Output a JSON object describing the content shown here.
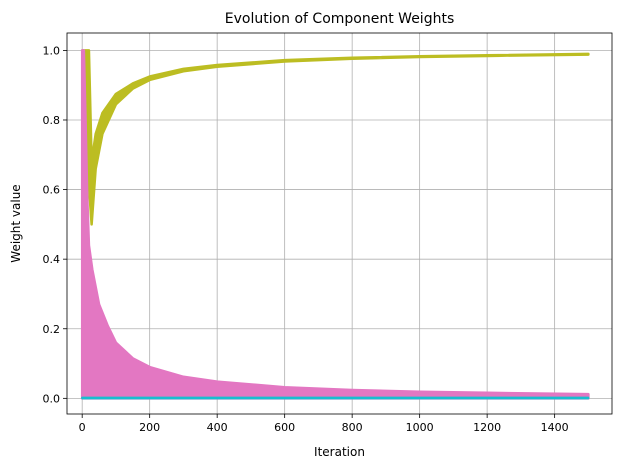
{
  "chart_data": {
    "type": "line",
    "title": "Evolution of Component Weights",
    "xlabel": "Iteration",
    "ylabel": "Weight value",
    "xlim": [
      -45,
      1570
    ],
    "ylim": [
      -0.045,
      1.05
    ],
    "xticks": [
      0,
      200,
      400,
      600,
      800,
      1000,
      1200,
      1400
    ],
    "yticks": [
      0.0,
      0.2,
      0.4,
      0.6,
      0.8,
      1.0
    ],
    "xtick_labels": [
      "0",
      "200",
      "400",
      "600",
      "800",
      "1000",
      "1200",
      "1400"
    ],
    "ytick_labels": [
      "0.0",
      "0.2",
      "0.4",
      "0.6",
      "0.8",
      "1.0"
    ],
    "grid": true,
    "x_range": [
      0,
      1500
    ],
    "series": [
      {
        "color": "#bcbd22",
        "style": "alternating",
        "description_values": {
          "upper_envelope": [
            [
              0,
              1.0
            ],
            [
              10,
              1.0
            ],
            [
              20,
              1.0
            ],
            [
              28,
              0.68
            ],
            [
              40,
              0.76
            ],
            [
              60,
              0.82
            ],
            [
              100,
              0.875
            ],
            [
              150,
              0.905
            ],
            [
              200,
              0.925
            ],
            [
              300,
              0.947
            ],
            [
              400,
              0.958
            ],
            [
              600,
              0.972
            ],
            [
              800,
              0.979
            ],
            [
              1000,
              0.983
            ],
            [
              1200,
              0.986
            ],
            [
              1500,
              0.99
            ]
          ],
          "lower_envelope": [
            [
              0,
              1.0
            ],
            [
              10,
              0.75
            ],
            [
              20,
              0.61
            ],
            [
              28,
              0.5
            ],
            [
              40,
              0.66
            ],
            [
              60,
              0.76
            ],
            [
              100,
              0.845
            ],
            [
              150,
              0.89
            ],
            [
              200,
              0.915
            ],
            [
              300,
              0.94
            ],
            [
              400,
              0.953
            ],
            [
              600,
              0.968
            ],
            [
              800,
              0.976
            ],
            [
              1000,
              0.981
            ],
            [
              1200,
              0.984
            ],
            [
              1500,
              0.988
            ]
          ]
        }
      },
      {
        "color": "#e377c2",
        "style": "alternating",
        "description_values": {
          "upper_envelope": [
            [
              0,
              1.0
            ],
            [
              5,
              1.0
            ],
            [
              10,
              0.8
            ],
            [
              15,
              0.58
            ],
            [
              20,
              0.44
            ],
            [
              30,
              0.37
            ],
            [
              50,
              0.27
            ],
            [
              75,
              0.21
            ],
            [
              100,
              0.16
            ],
            [
              150,
              0.115
            ],
            [
              200,
              0.09
            ],
            [
              300,
              0.062
            ],
            [
              400,
              0.048
            ],
            [
              600,
              0.032
            ],
            [
              800,
              0.024
            ],
            [
              1000,
              0.019
            ],
            [
              1200,
              0.016
            ],
            [
              1500,
              0.012
            ]
          ],
          "lower_envelope": [
            [
              0,
              0.0
            ],
            [
              1500,
              0.0
            ]
          ]
        }
      },
      {
        "color": "#17becf",
        "style": "flat",
        "description_values": {
          "upper_envelope": [
            [
              0,
              0.002
            ],
            [
              1500,
              0.002
            ]
          ],
          "lower_envelope": [
            [
              0,
              0.0
            ],
            [
              1500,
              0.0
            ]
          ]
        }
      }
    ]
  }
}
